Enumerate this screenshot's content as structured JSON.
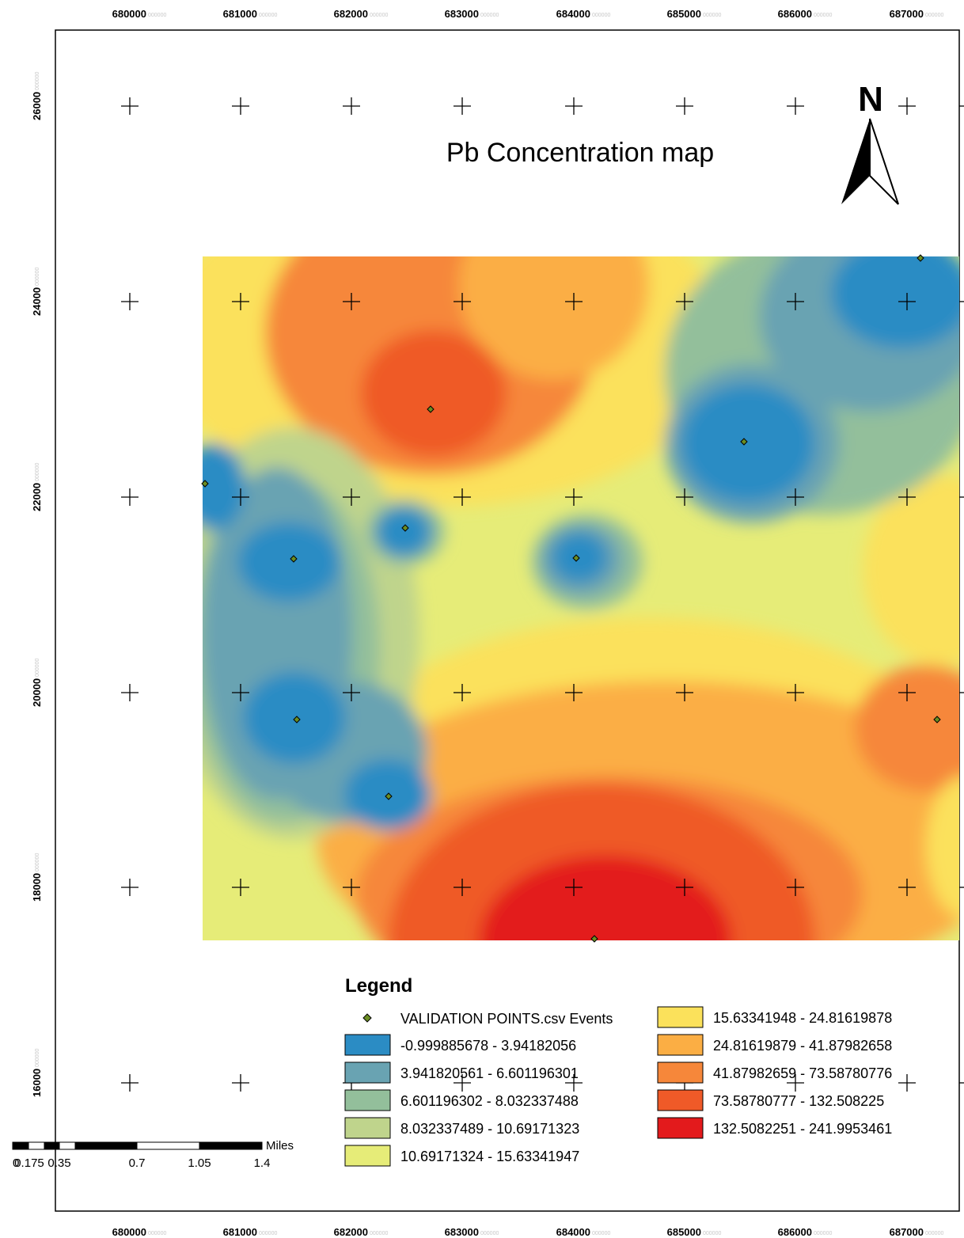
{
  "map": {
    "title": "Pb Concentration map",
    "north_label": "N",
    "x_ticks": [
      "680000",
      "681000",
      "682000",
      "683000",
      "684000",
      "685000",
      "686000",
      "687000"
    ],
    "y_ticks": [
      "26000",
      "24000",
      "22000",
      "20000",
      "18000",
      "16000"
    ],
    "tick_suffix": "000000"
  },
  "legend": {
    "title": "Legend",
    "points_label": "VALIDATION POINTS.csv Events",
    "point_color": "#6b8e23",
    "classes": [
      {
        "label": "-0.999885678 - 3.94182056",
        "color": "#2b8cc4"
      },
      {
        "label": "3.941820561 - 6.601196301",
        "color": "#69a3b2"
      },
      {
        "label": "6.601196302 - 8.032337488",
        "color": "#93bf9b"
      },
      {
        "label": "8.032337489 - 10.69171323",
        "color": "#bfd48c"
      },
      {
        "label": "10.69171324 - 15.63341947",
        "color": "#e6ec78"
      },
      {
        "label": "15.63341948 - 24.81619878",
        "color": "#fbe15b"
      },
      {
        "label": "24.81619879 - 41.87982658",
        "color": "#fbae44"
      },
      {
        "label": "41.87982659 - 73.58780776",
        "color": "#f6873a"
      },
      {
        "label": "73.58780777 - 132.508225",
        "color": "#ef5a28"
      },
      {
        "label": "132.5082251 - 241.9953461",
        "color": "#e31a1c"
      }
    ]
  },
  "scale_bar": {
    "unit": "Miles",
    "labels": [
      "0",
      "0.175",
      "0.35",
      "0.7",
      "1.05",
      "1.4"
    ]
  }
}
